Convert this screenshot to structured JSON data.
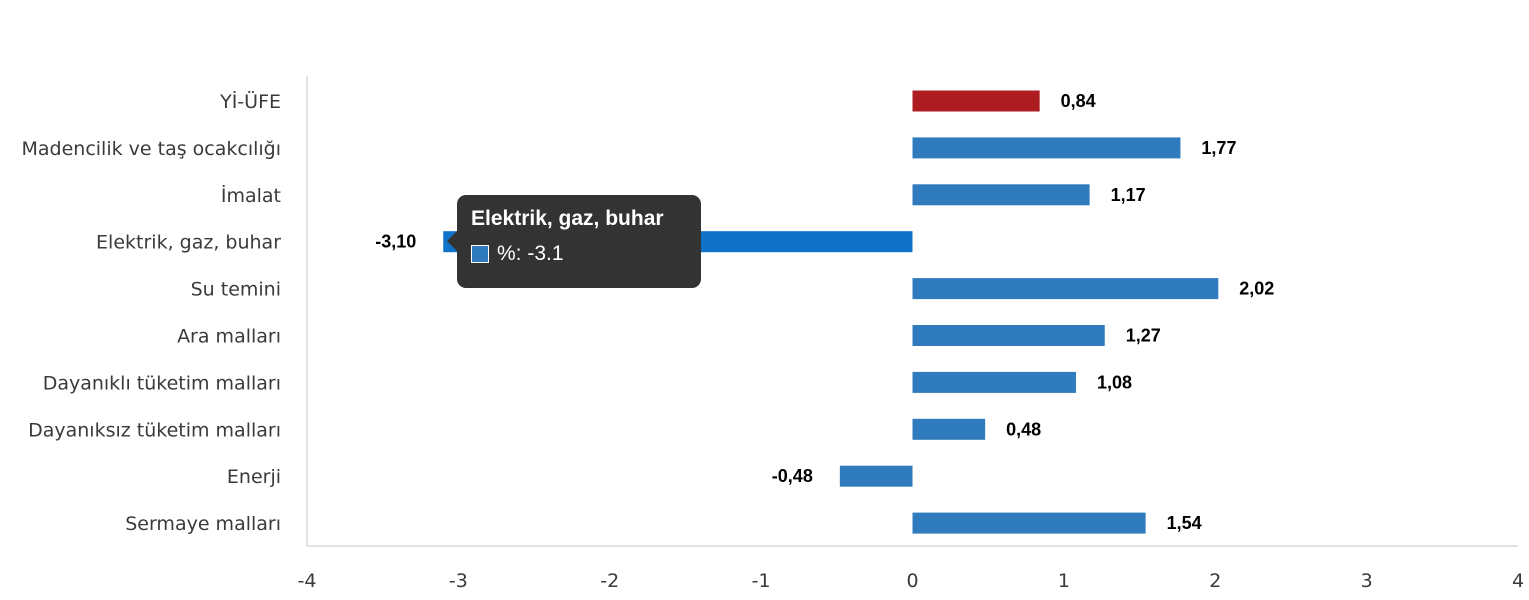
{
  "chart_data": {
    "type": "bar",
    "orientation": "horizontal",
    "categories": [
      "Yİ-ÜFE",
      "Madencilik ve taş ocakcılığı",
      "İmalat",
      "Elektrik, gaz, buhar",
      "Su temini",
      "Ara malları",
      "Dayanıklı tüketim malları",
      "Dayanıksız tüketim malları",
      "Enerji",
      "Sermaye malları"
    ],
    "values": [
      0.84,
      1.77,
      1.17,
      -3.1,
      2.02,
      1.27,
      1.08,
      0.48,
      -0.48,
      1.54
    ],
    "data_labels": [
      "0,84",
      "1,77",
      "1,17",
      "-3,10",
      "2,02",
      "1,27",
      "1,08",
      "0,48",
      "-0,48",
      "1,54"
    ],
    "xlim": [
      -4,
      4
    ],
    "xticks": [
      -4,
      -3,
      -2,
      -1,
      0,
      1,
      2,
      3,
      4
    ],
    "grid": false,
    "colors": {
      "default": "#2f7bbd",
      "highlight": "#ac1c21",
      "hover": "#1072c9"
    },
    "highlighted_index": 0,
    "hovered_index": 3
  },
  "tooltip": {
    "title": "Elektrik, gaz, buhar",
    "row_text": "%: -3.1",
    "swatch_color": "#2f7bbd"
  }
}
